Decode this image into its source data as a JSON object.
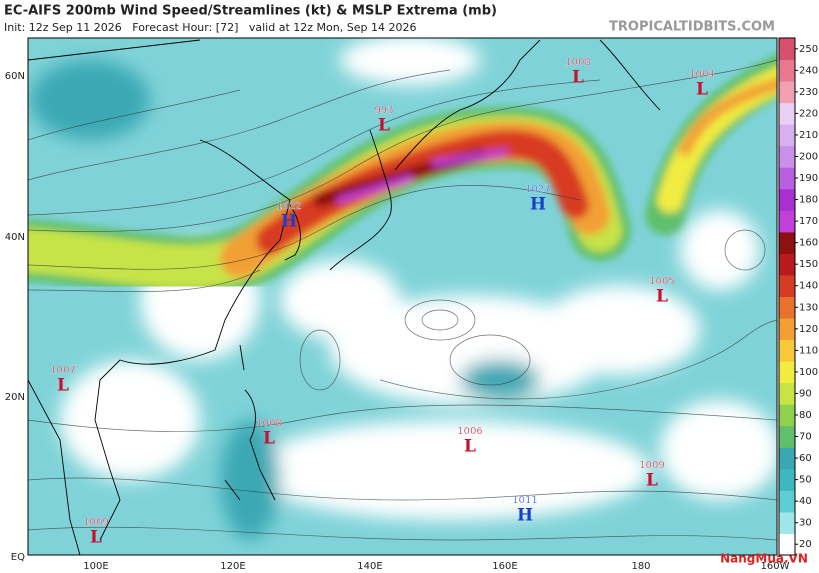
{
  "header": {
    "title": "EC-AIFS 200mb Wind Speed/Streamlines (kt) & MSLP Extrema (mb)",
    "subtitle": "Init: 12z Sep 11 2026   Forecast Hour: [72]   valid at 12z Mon, Sep 14 2026",
    "site": "TROPICALTIDBITS.COM"
  },
  "map": {
    "lat_labels": [
      "60N",
      "40N",
      "20N",
      "EQ"
    ],
    "lon_labels": [
      "100E",
      "120E",
      "140E",
      "160E",
      "180",
      "160W"
    ],
    "pressure_centers": [
      {
        "value": 1008,
        "type": "L"
      },
      {
        "value": 1004,
        "type": "L"
      },
      {
        "value": 993,
        "type": "L"
      },
      {
        "value": 1022,
        "type": "H"
      },
      {
        "value": 1027,
        "type": "H"
      },
      {
        "value": 1005,
        "type": "L"
      },
      {
        "value": 1007,
        "type": "L"
      },
      {
        "value": 1008,
        "type": "L"
      },
      {
        "value": 1006,
        "type": "L"
      },
      {
        "value": 1009,
        "type": "L"
      },
      {
        "value": 1011,
        "type": "H"
      },
      {
        "value": 1009,
        "type": "L"
      }
    ],
    "low_color": "#c8102e",
    "high_color": "#1a3fc8"
  },
  "colorbar": {
    "ticks": [
      20,
      30,
      40,
      50,
      60,
      70,
      80,
      90,
      100,
      110,
      120,
      130,
      140,
      150,
      160,
      170,
      180,
      190,
      200,
      210,
      220,
      230,
      240,
      250
    ],
    "colors": [
      "#ffffff",
      "#9fe6ea",
      "#5fcdd4",
      "#3eb7c1",
      "#3aa8b3",
      "#5fbf6a",
      "#8fd14f",
      "#c7e346",
      "#f1ec3f",
      "#f6c93a",
      "#f2a034",
      "#e8712c",
      "#d83b23",
      "#b81b1b",
      "#8f1010",
      "#c040d8",
      "#a830d0",
      "#b860e0",
      "#c890e8",
      "#d8b0f0",
      "#e8d0f4",
      "#f0a0b0",
      "#e87890",
      "#d85070"
    ]
  },
  "watermark": "NangMua.VN"
}
